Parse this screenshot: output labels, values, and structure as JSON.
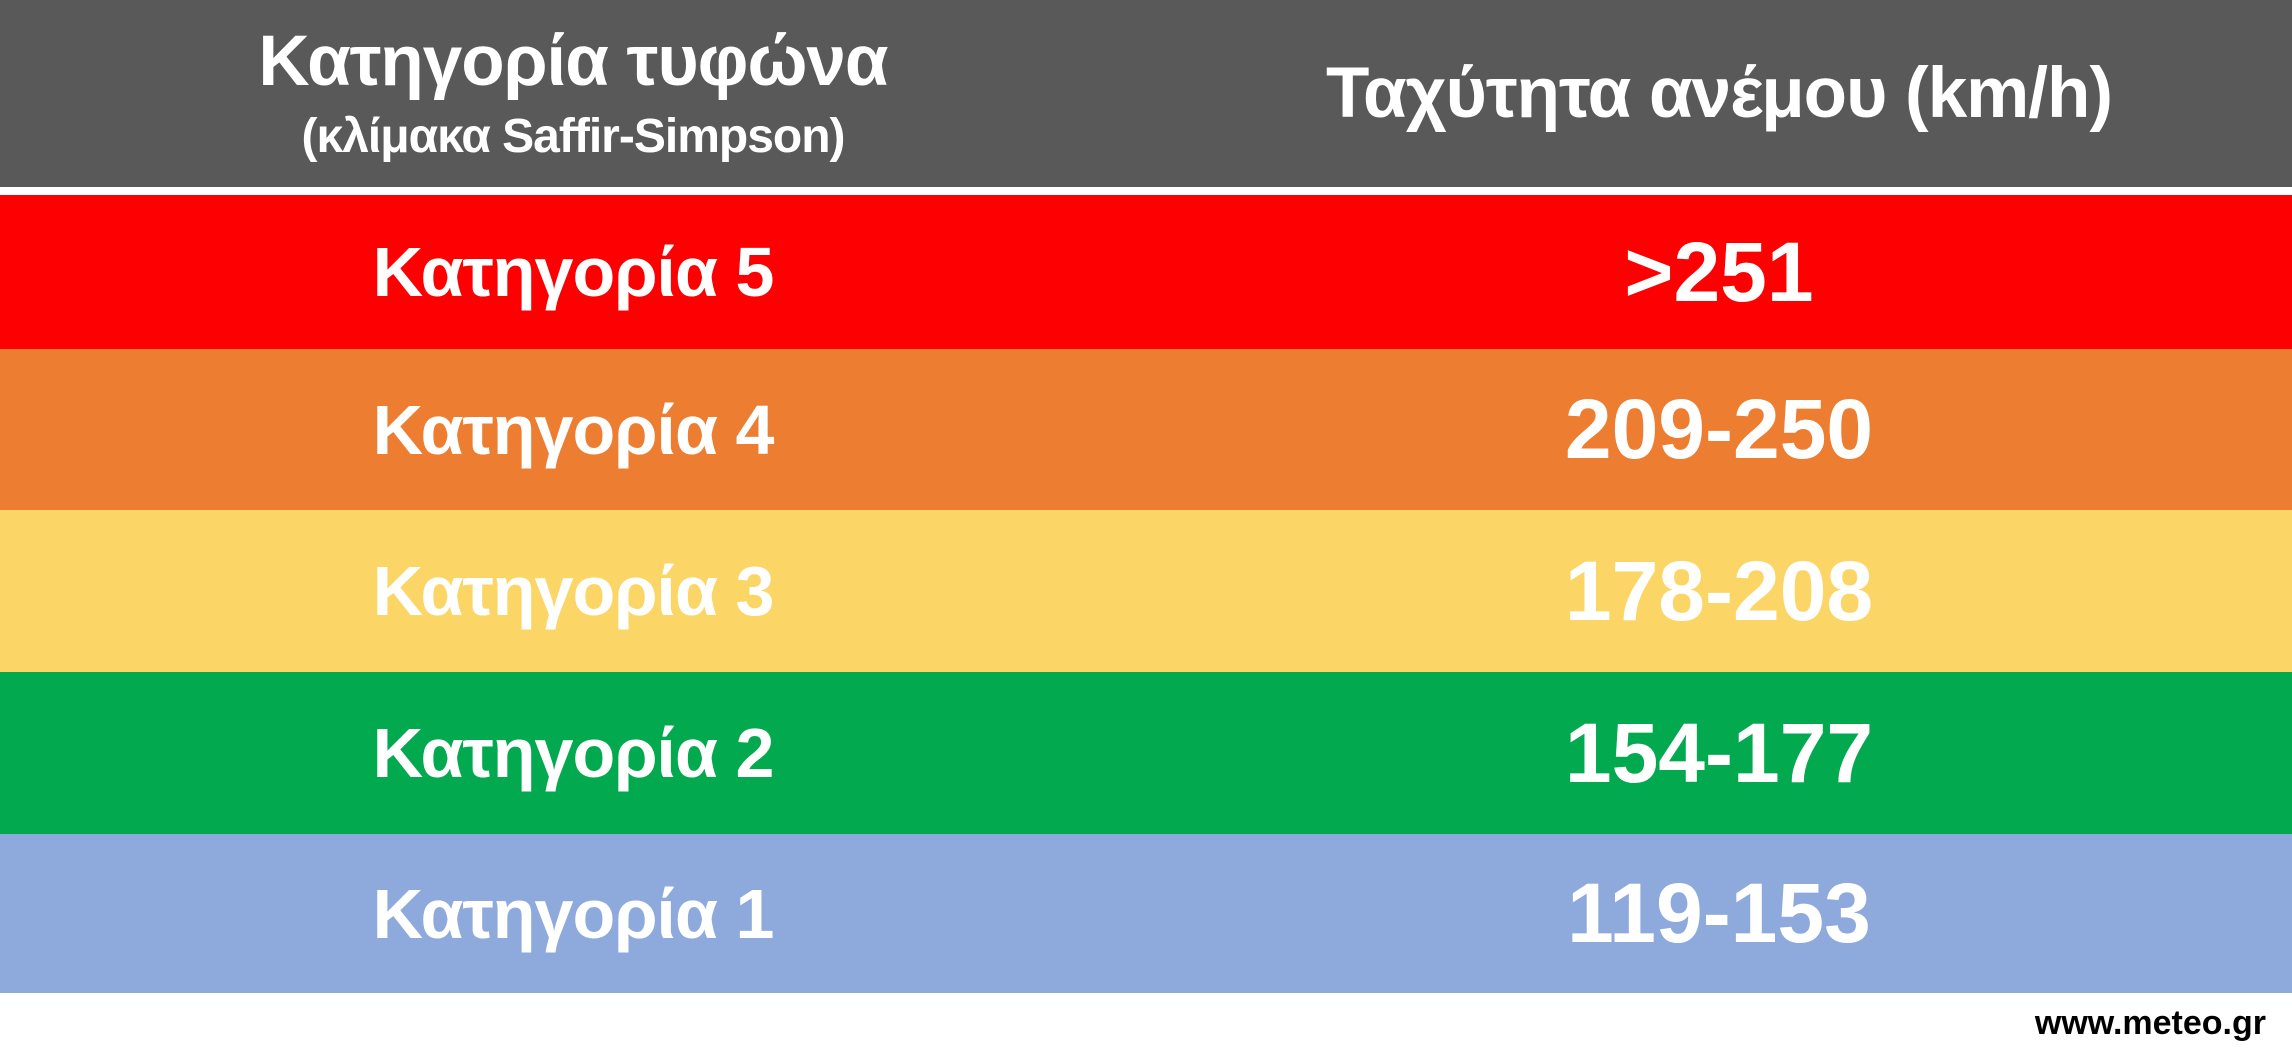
{
  "header": {
    "background": "#595959",
    "col1_title": "Κατηγορία τυφώνα",
    "col1_subtitle": "(κλίμακα Saffir-Simpson)",
    "col2_title": "Ταχύτητα ανέμου (km/h)"
  },
  "rows": [
    {
      "category": "Κατηγορία 5",
      "speed": ">251",
      "color": "#FD0002"
    },
    {
      "category": "Κατηγορία 4",
      "speed": "209-250",
      "color": "#EC7D31"
    },
    {
      "category": "Κατηγορία 3",
      "speed": "178-208",
      "color": "#FBD666"
    },
    {
      "category": "Κατηγορία 2",
      "speed": "154-177",
      "color": "#03A94F"
    },
    {
      "category": "Κατηγορία 1",
      "speed": "119-153",
      "color": "#8EA9DC"
    }
  ],
  "footer": {
    "source": "www.meteo.gr"
  },
  "text_color": "#FFFFFF",
  "chart_data": {
    "type": "table",
    "title": "Κατηγορία τυφώνα (κλίμακα Saffir-Simpson)",
    "columns": [
      "Κατηγορία τυφώνα (κλίμακα Saffir-Simpson)",
      "Ταχύτητα ανέμου (km/h)"
    ],
    "rows": [
      [
        "Κατηγορία 5",
        ">251"
      ],
      [
        "Κατηγορία 4",
        "209-250"
      ],
      [
        "Κατηγορία 3",
        "178-208"
      ],
      [
        "Κατηγορία 2",
        "154-177"
      ],
      [
        "Κατηγορία 1",
        "119-153"
      ]
    ],
    "row_colors": [
      "#FD0002",
      "#EC7D31",
      "#FBD666",
      "#03A94F",
      "#8EA9DC"
    ],
    "units": "km/h",
    "legend_position": "none",
    "grid": false,
    "source": "www.meteo.gr"
  }
}
